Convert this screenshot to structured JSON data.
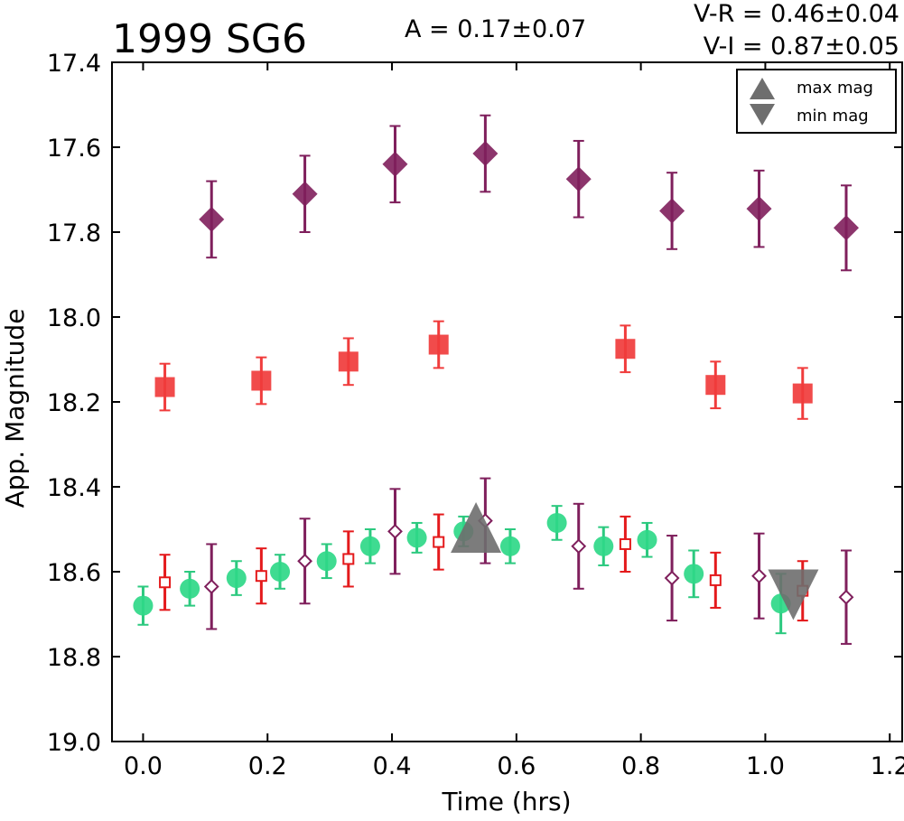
{
  "chart_data": {
    "type": "scatter",
    "title": "1999 SG6",
    "annotations": {
      "amplitude": "A  = 0.17±0.07",
      "color_vr": "V-R = 0.46±0.04",
      "color_vi": "V-I  = 0.87±0.05"
    },
    "xlabel": "Time (hrs)",
    "ylabel": "App. Magnitude",
    "xlim": [
      -0.05,
      1.22
    ],
    "ylim": [
      17.4,
      19.0
    ],
    "y_inverted": true,
    "grid": false,
    "x_ticks": [
      "0.0",
      "0.2",
      "0.4",
      "0.6",
      "0.8",
      "1.0",
      "1.2"
    ],
    "y_ticks": [
      "17.4",
      "17.6",
      "17.8",
      "18.0",
      "18.2",
      "18.4",
      "18.6",
      "18.8",
      "19.0"
    ],
    "legend_position": "top-right",
    "legend": [
      {
        "label": "max mag",
        "marker": "triangle-up"
      },
      {
        "label": "min mag",
        "marker": "triangle-down"
      }
    ],
    "colors": {
      "purple": "#7f1f5c",
      "red": "#f03c3c",
      "red_dark": "#e41a1c",
      "green": "#2fd888",
      "green_bar": "#2cc97f",
      "gray": "#6e6e6e"
    },
    "series": [
      {
        "marker": "diamond-filled",
        "color": "purple",
        "points": [
          {
            "x": 0.11,
            "y": 17.77,
            "err": 0.09
          },
          {
            "x": 0.26,
            "y": 17.71,
            "err": 0.09
          },
          {
            "x": 0.405,
            "y": 17.64,
            "err": 0.09
          },
          {
            "x": 0.55,
            "y": 17.615,
            "err": 0.09
          },
          {
            "x": 0.7,
            "y": 17.675,
            "err": 0.09
          },
          {
            "x": 0.85,
            "y": 17.75,
            "err": 0.09
          },
          {
            "x": 0.99,
            "y": 17.745,
            "err": 0.09
          },
          {
            "x": 1.13,
            "y": 17.79,
            "err": 0.1
          }
        ]
      },
      {
        "marker": "square-filled",
        "color": "red",
        "points": [
          {
            "x": 0.035,
            "y": 18.165,
            "err": 0.055
          },
          {
            "x": 0.19,
            "y": 18.15,
            "err": 0.055
          },
          {
            "x": 0.33,
            "y": 18.105,
            "err": 0.055
          },
          {
            "x": 0.475,
            "y": 18.065,
            "err": 0.055
          },
          {
            "x": 0.775,
            "y": 18.075,
            "err": 0.055
          },
          {
            "x": 0.92,
            "y": 18.16,
            "err": 0.055
          },
          {
            "x": 1.06,
            "y": 18.18,
            "err": 0.06
          }
        ]
      },
      {
        "marker": "circle-filled",
        "color": "green",
        "points": [
          {
            "x": 0.0,
            "y": 18.68,
            "err": 0.045
          },
          {
            "x": 0.075,
            "y": 18.64,
            "err": 0.04
          },
          {
            "x": 0.15,
            "y": 18.615,
            "err": 0.04
          },
          {
            "x": 0.22,
            "y": 18.6,
            "err": 0.04
          },
          {
            "x": 0.295,
            "y": 18.575,
            "err": 0.04
          },
          {
            "x": 0.365,
            "y": 18.54,
            "err": 0.04
          },
          {
            "x": 0.44,
            "y": 18.52,
            "err": 0.035
          },
          {
            "x": 0.515,
            "y": 18.505,
            "err": 0.035
          },
          {
            "x": 0.59,
            "y": 18.54,
            "err": 0.04
          },
          {
            "x": 0.665,
            "y": 18.485,
            "err": 0.04
          },
          {
            "x": 0.74,
            "y": 18.54,
            "err": 0.045
          },
          {
            "x": 0.81,
            "y": 18.525,
            "err": 0.04
          },
          {
            "x": 0.885,
            "y": 18.605,
            "err": 0.055
          },
          {
            "x": 1.025,
            "y": 18.675,
            "err": 0.07
          }
        ]
      },
      {
        "marker": "square-open",
        "color": "red_dark",
        "points": [
          {
            "x": 0.035,
            "y": 18.625,
            "err": 0.065
          },
          {
            "x": 0.19,
            "y": 18.61,
            "err": 0.065
          },
          {
            "x": 0.33,
            "y": 18.57,
            "err": 0.065
          },
          {
            "x": 0.475,
            "y": 18.53,
            "err": 0.065
          },
          {
            "x": 0.775,
            "y": 18.535,
            "err": 0.065
          },
          {
            "x": 0.92,
            "y": 18.62,
            "err": 0.065
          },
          {
            "x": 1.06,
            "y": 18.645,
            "err": 0.07
          }
        ]
      },
      {
        "marker": "diamond-open",
        "color": "purple",
        "points": [
          {
            "x": 0.11,
            "y": 18.635,
            "err": 0.1
          },
          {
            "x": 0.26,
            "y": 18.575,
            "err": 0.1
          },
          {
            "x": 0.405,
            "y": 18.505,
            "err": 0.1
          },
          {
            "x": 0.55,
            "y": 18.48,
            "err": 0.1
          },
          {
            "x": 0.7,
            "y": 18.54,
            "err": 0.1
          },
          {
            "x": 0.85,
            "y": 18.615,
            "err": 0.1
          },
          {
            "x": 0.99,
            "y": 18.61,
            "err": 0.1
          },
          {
            "x": 1.13,
            "y": 18.66,
            "err": 0.11
          }
        ]
      },
      {
        "marker": "triangle-up",
        "color": "gray",
        "points": [
          {
            "x": 0.535,
            "y": 18.5
          }
        ]
      },
      {
        "marker": "triangle-down",
        "color": "gray",
        "points": [
          {
            "x": 1.045,
            "y": 18.65
          }
        ]
      }
    ]
  }
}
